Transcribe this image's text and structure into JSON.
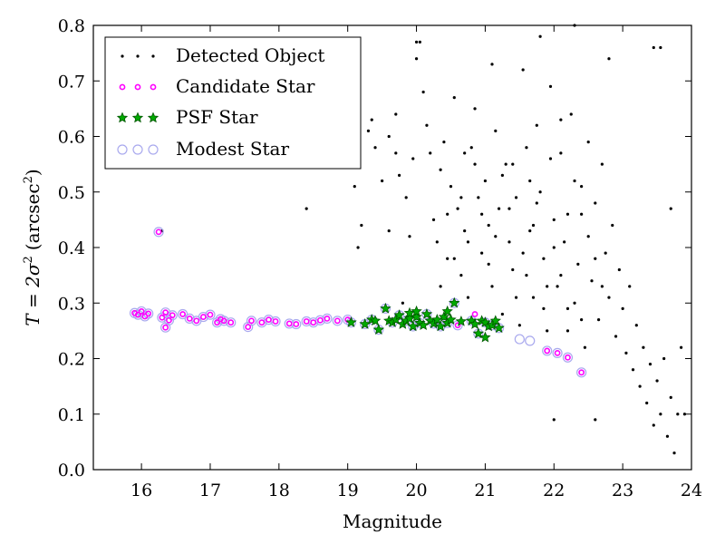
{
  "chart_data": {
    "type": "scatter",
    "title": "",
    "xlabel": "Magnitude",
    "ylabel": {
      "prefix": "T = 2σ",
      "exp": "2",
      "unit": "(arcsec",
      "unit_exp": "2",
      "unit_close": ")"
    },
    "xlim": [
      15.3,
      24
    ],
    "ylim": [
      0,
      0.8
    ],
    "xticks": [
      16,
      17,
      18,
      19,
      20,
      21,
      22,
      23,
      24
    ],
    "yticks": [
      0.0,
      0.1,
      0.2,
      0.3,
      0.4,
      0.5,
      0.6,
      0.7,
      0.8
    ],
    "grid": false,
    "legend_position": "top-left",
    "colors": {
      "detected": "#000000",
      "candidate": "#ff00ff",
      "psf_fill": "#00aa00",
      "psf_edge": "#005500",
      "modest": "#a9a9ee"
    },
    "series": [
      {
        "name": "Detected Object",
        "marker": "dot",
        "points": [
          [
            16.3,
            0.43
          ],
          [
            18.4,
            0.47
          ],
          [
            19.1,
            0.51
          ],
          [
            19.15,
            0.4
          ],
          [
            19.2,
            0.44
          ],
          [
            19.3,
            0.61
          ],
          [
            19.35,
            0.63
          ],
          [
            19.4,
            0.58
          ],
          [
            19.5,
            0.52
          ],
          [
            19.6,
            0.6
          ],
          [
            19.6,
            0.43
          ],
          [
            19.7,
            0.64
          ],
          [
            19.75,
            0.53
          ],
          [
            19.8,
            0.3
          ],
          [
            19.85,
            0.49
          ],
          [
            19.9,
            0.42
          ],
          [
            19.95,
            0.56
          ],
          [
            20.0,
            0.74
          ],
          [
            20.05,
            0.77
          ],
          [
            20.1,
            0.68
          ],
          [
            20.15,
            0.62
          ],
          [
            20.2,
            0.57
          ],
          [
            20.25,
            0.45
          ],
          [
            20.3,
            0.41
          ],
          [
            20.35,
            0.54
          ],
          [
            20.4,
            0.59
          ],
          [
            20.45,
            0.38
          ],
          [
            20.5,
            0.51
          ],
          [
            20.55,
            0.67
          ],
          [
            20.6,
            0.47
          ],
          [
            20.65,
            0.35
          ],
          [
            20.7,
            0.43
          ],
          [
            20.75,
            0.31
          ],
          [
            20.8,
            0.58
          ],
          [
            20.85,
            0.65
          ],
          [
            20.9,
            0.49
          ],
          [
            20.95,
            0.39
          ],
          [
            21.0,
            0.52
          ],
          [
            21.05,
            0.44
          ],
          [
            21.1,
            0.33
          ],
          [
            21.15,
            0.61
          ],
          [
            21.2,
            0.47
          ],
          [
            21.25,
            0.28
          ],
          [
            21.3,
            0.55
          ],
          [
            21.35,
            0.41
          ],
          [
            21.4,
            0.36
          ],
          [
            21.45,
            0.49
          ],
          [
            21.5,
            0.26
          ],
          [
            21.55,
            0.72
          ],
          [
            21.6,
            0.58
          ],
          [
            21.65,
            0.43
          ],
          [
            21.7,
            0.31
          ],
          [
            21.75,
            0.62
          ],
          [
            21.8,
            0.5
          ],
          [
            21.85,
            0.38
          ],
          [
            21.9,
            0.25
          ],
          [
            21.95,
            0.69
          ],
          [
            22.0,
            0.45
          ],
          [
            22.05,
            0.33
          ],
          [
            22.1,
            0.57
          ],
          [
            22.15,
            0.41
          ],
          [
            22.2,
            0.29
          ],
          [
            22.25,
            0.64
          ],
          [
            22.3,
            0.52
          ],
          [
            22.35,
            0.37
          ],
          [
            22.4,
            0.46
          ],
          [
            22.45,
            0.22
          ],
          [
            22.5,
            0.59
          ],
          [
            22.55,
            0.34
          ],
          [
            22.6,
            0.48
          ],
          [
            22.65,
            0.27
          ],
          [
            22.7,
            0.55
          ],
          [
            22.75,
            0.39
          ],
          [
            22.8,
            0.31
          ],
          [
            22.85,
            0.44
          ],
          [
            22.9,
            0.24
          ],
          [
            22.95,
            0.36
          ],
          [
            23.0,
            0.29
          ],
          [
            23.05,
            0.21
          ],
          [
            23.1,
            0.33
          ],
          [
            23.15,
            0.18
          ],
          [
            23.2,
            0.26
          ],
          [
            23.25,
            0.15
          ],
          [
            23.3,
            0.22
          ],
          [
            23.35,
            0.12
          ],
          [
            23.4,
            0.19
          ],
          [
            23.45,
            0.08
          ],
          [
            23.5,
            0.16
          ],
          [
            23.55,
            0.1
          ],
          [
            23.6,
            0.2
          ],
          [
            23.65,
            0.06
          ],
          [
            23.7,
            0.13
          ],
          [
            23.75,
            0.03
          ],
          [
            23.8,
            0.1
          ],
          [
            23.85,
            0.22
          ],
          [
            23.45,
            0.76
          ],
          [
            23.55,
            0.76
          ],
          [
            23.7,
            0.47
          ],
          [
            23.9,
            0.1
          ],
          [
            22.0,
            0.09
          ],
          [
            22.6,
            0.09
          ],
          [
            21.8,
            0.78
          ],
          [
            22.3,
            0.8
          ],
          [
            22.8,
            0.74
          ],
          [
            20.0,
            0.77
          ],
          [
            19.7,
            0.57
          ],
          [
            20.7,
            0.57
          ],
          [
            21.1,
            0.73
          ],
          [
            21.4,
            0.55
          ],
          [
            22.1,
            0.63
          ],
          [
            22.0,
            0.4
          ],
          [
            22.1,
            0.35
          ],
          [
            22.3,
            0.3
          ],
          [
            22.2,
            0.46
          ],
          [
            22.4,
            0.51
          ],
          [
            21.95,
            0.56
          ],
          [
            21.7,
            0.44
          ],
          [
            21.6,
            0.35
          ],
          [
            21.85,
            0.29
          ],
          [
            22.5,
            0.42
          ],
          [
            22.6,
            0.38
          ],
          [
            22.7,
            0.33
          ],
          [
            22.4,
            0.27
          ],
          [
            22.2,
            0.25
          ],
          [
            21.9,
            0.33
          ],
          [
            21.75,
            0.48
          ],
          [
            21.65,
            0.52
          ],
          [
            21.55,
            0.39
          ],
          [
            21.45,
            0.31
          ],
          [
            21.35,
            0.47
          ],
          [
            21.25,
            0.53
          ],
          [
            21.15,
            0.42
          ],
          [
            21.05,
            0.37
          ],
          [
            20.95,
            0.46
          ],
          [
            20.85,
            0.55
          ],
          [
            20.75,
            0.41
          ],
          [
            20.65,
            0.49
          ],
          [
            20.55,
            0.38
          ],
          [
            20.45,
            0.46
          ],
          [
            20.35,
            0.33
          ]
        ]
      },
      {
        "name": "Candidate Star",
        "marker": "circle",
        "points": [
          [
            15.9,
            0.282
          ],
          [
            15.95,
            0.279
          ],
          [
            16.0,
            0.285
          ],
          [
            16.05,
            0.276
          ],
          [
            16.1,
            0.281
          ],
          [
            16.3,
            0.274
          ],
          [
            16.35,
            0.283
          ],
          [
            16.4,
            0.269
          ],
          [
            16.45,
            0.278
          ],
          [
            16.6,
            0.28
          ],
          [
            16.7,
            0.272
          ],
          [
            16.8,
            0.268
          ],
          [
            16.9,
            0.275
          ],
          [
            17.0,
            0.279
          ],
          [
            17.1,
            0.265
          ],
          [
            17.15,
            0.271
          ],
          [
            17.2,
            0.268
          ],
          [
            17.3,
            0.265
          ],
          [
            17.55,
            0.257
          ],
          [
            17.6,
            0.268
          ],
          [
            17.75,
            0.265
          ],
          [
            17.85,
            0.27
          ],
          [
            17.95,
            0.267
          ],
          [
            18.15,
            0.263
          ],
          [
            18.25,
            0.262
          ],
          [
            18.4,
            0.267
          ],
          [
            18.5,
            0.265
          ],
          [
            18.6,
            0.269
          ],
          [
            18.7,
            0.272
          ],
          [
            18.85,
            0.268
          ],
          [
            19.0,
            0.27
          ],
          [
            20.6,
            0.26
          ],
          [
            20.85,
            0.28
          ],
          [
            16.35,
            0.256
          ],
          [
            16.25,
            0.428
          ],
          [
            21.9,
            0.214
          ],
          [
            22.05,
            0.21
          ],
          [
            22.2,
            0.202
          ],
          [
            22.4,
            0.175
          ]
        ]
      },
      {
        "name": "PSF Star",
        "marker": "star",
        "points": [
          [
            19.05,
            0.265
          ],
          [
            19.25,
            0.262
          ],
          [
            19.35,
            0.27
          ],
          [
            19.4,
            0.268
          ],
          [
            19.45,
            0.252
          ],
          [
            19.55,
            0.29
          ],
          [
            19.6,
            0.268
          ],
          [
            19.65,
            0.265
          ],
          [
            19.7,
            0.27
          ],
          [
            19.75,
            0.278
          ],
          [
            19.8,
            0.262
          ],
          [
            19.85,
            0.268
          ],
          [
            19.9,
            0.272
          ],
          [
            19.95,
            0.258
          ],
          [
            20.0,
            0.275
          ],
          [
            20.05,
            0.264
          ],
          [
            20.1,
            0.26
          ],
          [
            20.15,
            0.28
          ],
          [
            20.2,
            0.268
          ],
          [
            20.25,
            0.263
          ],
          [
            20.3,
            0.27
          ],
          [
            20.35,
            0.258
          ],
          [
            20.4,
            0.275
          ],
          [
            20.45,
            0.264
          ],
          [
            20.5,
            0.27
          ],
          [
            20.55,
            0.3
          ],
          [
            20.65,
            0.267
          ],
          [
            20.8,
            0.268
          ],
          [
            20.85,
            0.262
          ],
          [
            20.9,
            0.245
          ],
          [
            20.95,
            0.268
          ],
          [
            21.0,
            0.265
          ],
          [
            21.05,
            0.258
          ],
          [
            21.1,
            0.26
          ],
          [
            21.15,
            0.268
          ],
          [
            21.2,
            0.255
          ],
          [
            20.45,
            0.285
          ],
          [
            19.9,
            0.282
          ],
          [
            20.0,
            0.285
          ],
          [
            21.0,
            0.238
          ]
        ]
      },
      {
        "name": "Modest Star",
        "marker": "ring",
        "points": [
          [
            15.9,
            0.282
          ],
          [
            15.95,
            0.279
          ],
          [
            16.0,
            0.285
          ],
          [
            16.05,
            0.276
          ],
          [
            16.1,
            0.281
          ],
          [
            16.3,
            0.274
          ],
          [
            16.35,
            0.283
          ],
          [
            16.4,
            0.269
          ],
          [
            16.45,
            0.278
          ],
          [
            16.6,
            0.28
          ],
          [
            16.7,
            0.272
          ],
          [
            16.8,
            0.268
          ],
          [
            16.9,
            0.275
          ],
          [
            17.0,
            0.279
          ],
          [
            17.1,
            0.265
          ],
          [
            17.15,
            0.271
          ],
          [
            17.2,
            0.268
          ],
          [
            17.3,
            0.265
          ],
          [
            17.55,
            0.257
          ],
          [
            17.6,
            0.268
          ],
          [
            17.75,
            0.265
          ],
          [
            17.85,
            0.27
          ],
          [
            17.95,
            0.267
          ],
          [
            18.15,
            0.263
          ],
          [
            18.25,
            0.262
          ],
          [
            18.4,
            0.267
          ],
          [
            18.5,
            0.265
          ],
          [
            18.6,
            0.269
          ],
          [
            18.7,
            0.272
          ],
          [
            18.85,
            0.268
          ],
          [
            19.0,
            0.27
          ],
          [
            19.05,
            0.265
          ],
          [
            19.25,
            0.262
          ],
          [
            19.35,
            0.27
          ],
          [
            19.45,
            0.252
          ],
          [
            19.55,
            0.29
          ],
          [
            19.65,
            0.265
          ],
          [
            19.75,
            0.278
          ],
          [
            19.85,
            0.268
          ],
          [
            19.95,
            0.258
          ],
          [
            20.05,
            0.264
          ],
          [
            20.15,
            0.28
          ],
          [
            20.25,
            0.263
          ],
          [
            20.35,
            0.258
          ],
          [
            20.45,
            0.264
          ],
          [
            20.55,
            0.3
          ],
          [
            20.6,
            0.26
          ],
          [
            20.8,
            0.268
          ],
          [
            20.9,
            0.245
          ],
          [
            21.0,
            0.265
          ],
          [
            21.1,
            0.26
          ],
          [
            21.2,
            0.255
          ],
          [
            16.35,
            0.256
          ],
          [
            16.25,
            0.428
          ],
          [
            21.5,
            0.235
          ],
          [
            21.65,
            0.232
          ],
          [
            21.9,
            0.214
          ],
          [
            22.05,
            0.21
          ],
          [
            22.2,
            0.202
          ],
          [
            22.4,
            0.175
          ]
        ]
      }
    ]
  }
}
